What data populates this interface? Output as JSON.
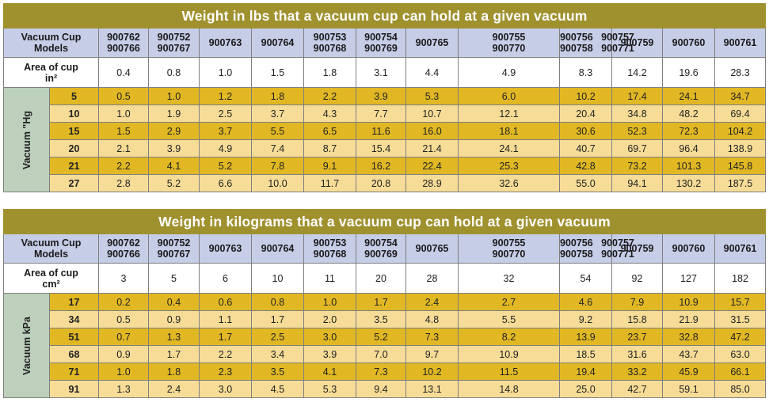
{
  "tables": [
    {
      "title": "Weight in lbs that a vacuum cup can hold at a given vacuum",
      "models_label": [
        "Vacuum Cup",
        "Models"
      ],
      "models": [
        [
          "900762",
          "900766"
        ],
        [
          "900752",
          "900767"
        ],
        [
          "900763"
        ],
        [
          "900764"
        ],
        [
          "900753",
          "900768"
        ],
        [
          "900754",
          "900769"
        ],
        [
          "900765"
        ],
        [
          "900755",
          "900770"
        ],
        [
          "900756   900757",
          "900758   900771"
        ],
        [
          "900759"
        ],
        [
          "900760"
        ],
        [
          "900761"
        ]
      ],
      "area_label": [
        "Area of cup",
        "in²"
      ],
      "areas": [
        "0.4",
        "0.8",
        "1.0",
        "1.5",
        "1.8",
        "3.1",
        "4.4",
        "4.9",
        "8.3",
        "14.2",
        "19.6",
        "28.3"
      ],
      "side_label": "Vacuum \"Hg",
      "rows": [
        {
          "vac": "5",
          "values": [
            "0.5",
            "1.0",
            "1.2",
            "1.8",
            "2.2",
            "3.9",
            "5.3",
            "6.0",
            "10.2",
            "17.4",
            "24.1",
            "34.7"
          ]
        },
        {
          "vac": "10",
          "values": [
            "1.0",
            "1.9",
            "2.5",
            "3.7",
            "4.3",
            "7.7",
            "10.7",
            "12.1",
            "20.4",
            "34.8",
            "48.2",
            "69.4"
          ]
        },
        {
          "vac": "15",
          "values": [
            "1.5",
            "2.9",
            "3.7",
            "5.5",
            "6.5",
            "11.6",
            "16.0",
            "18.1",
            "30.6",
            "52.3",
            "72.3",
            "104.2"
          ]
        },
        {
          "vac": "20",
          "values": [
            "2.1",
            "3.9",
            "4.9",
            "7.4",
            "8.7",
            "15.4",
            "21.4",
            "24.1",
            "40.7",
            "69.7",
            "96.4",
            "138.9"
          ]
        },
        {
          "vac": "21",
          "values": [
            "2.2",
            "4.1",
            "5.2",
            "7.8",
            "9.1",
            "16.2",
            "22.4",
            "25.3",
            "42.8",
            "73.2",
            "101.3",
            "145.8"
          ]
        },
        {
          "vac": "27",
          "values": [
            "2.8",
            "5.2",
            "6.6",
            "10.0",
            "11.7",
            "20.8",
            "28.9",
            "32.6",
            "55.0",
            "94.1",
            "130.2",
            "187.5"
          ]
        }
      ]
    },
    {
      "title": "Weight in kilograms that a vacuum cup can hold at a given vacuum",
      "models_label": [
        "Vacuum Cup",
        "Models"
      ],
      "models": [
        [
          "900762",
          "900766"
        ],
        [
          "900752",
          "900767"
        ],
        [
          "900763"
        ],
        [
          "900764"
        ],
        [
          "900753",
          "900768"
        ],
        [
          "900754",
          "900769"
        ],
        [
          "900765"
        ],
        [
          "900755",
          "900770"
        ],
        [
          "900756   900757",
          "900758   900771"
        ],
        [
          "900759"
        ],
        [
          "900760"
        ],
        [
          "900761"
        ]
      ],
      "area_label": [
        "Area of cup",
        "cm²"
      ],
      "areas": [
        "3",
        "5",
        "6",
        "10",
        "11",
        "20",
        "28",
        "32",
        "54",
        "92",
        "127",
        "182"
      ],
      "side_label": "Vacuum kPa",
      "rows": [
        {
          "vac": "17",
          "values": [
            "0.2",
            "0.4",
            "0.6",
            "0.8",
            "1.0",
            "1.7",
            "2.4",
            "2.7",
            "4.6",
            "7.9",
            "10.9",
            "15.7"
          ]
        },
        {
          "vac": "34",
          "values": [
            "0.5",
            "0.9",
            "1.1",
            "1.7",
            "2.0",
            "3.5",
            "4.8",
            "5.5",
            "9.2",
            "15.8",
            "21.9",
            "31.5"
          ]
        },
        {
          "vac": "51",
          "values": [
            "0.7",
            "1.3",
            "1.7",
            "2.5",
            "3.0",
            "5.2",
            "7.3",
            "8.2",
            "13.9",
            "23.7",
            "32.8",
            "47.2"
          ]
        },
        {
          "vac": "68",
          "values": [
            "0.9",
            "1.7",
            "2.2",
            "3.4",
            "3.9",
            "7.0",
            "9.7",
            "10.9",
            "18.5",
            "31.6",
            "43.7",
            "63.0"
          ]
        },
        {
          "vac": "71",
          "values": [
            "1.0",
            "1.8",
            "2.3",
            "3.5",
            "4.1",
            "7.3",
            "10.2",
            "11.5",
            "19.4",
            "33.2",
            "45.9",
            "66.1"
          ]
        },
        {
          "vac": "91",
          "values": [
            "1.3",
            "2.4",
            "3.0",
            "4.5",
            "5.3",
            "9.4",
            "13.1",
            "14.8",
            "25.0",
            "42.7",
            "59.1",
            "85.0"
          ]
        }
      ]
    }
  ],
  "colors": {
    "title_bg": "#a0912f",
    "header_bg": "#c6cde7",
    "row_dark": "#e1b824",
    "row_light": "#f6dc97",
    "side_bg": "#bcd0bb"
  }
}
